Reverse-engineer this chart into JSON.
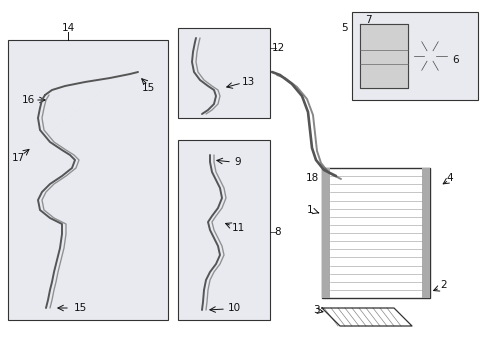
{
  "bg_color": "#ffffff",
  "fig_width": 4.9,
  "fig_height": 3.6,
  "dpi": 100,
  "color_line": "#555555",
  "color_dark": "#111111",
  "color_bg_box": "#e8eaf0",
  "fs_label": 7.5,
  "lw_pipe": 1.4
}
